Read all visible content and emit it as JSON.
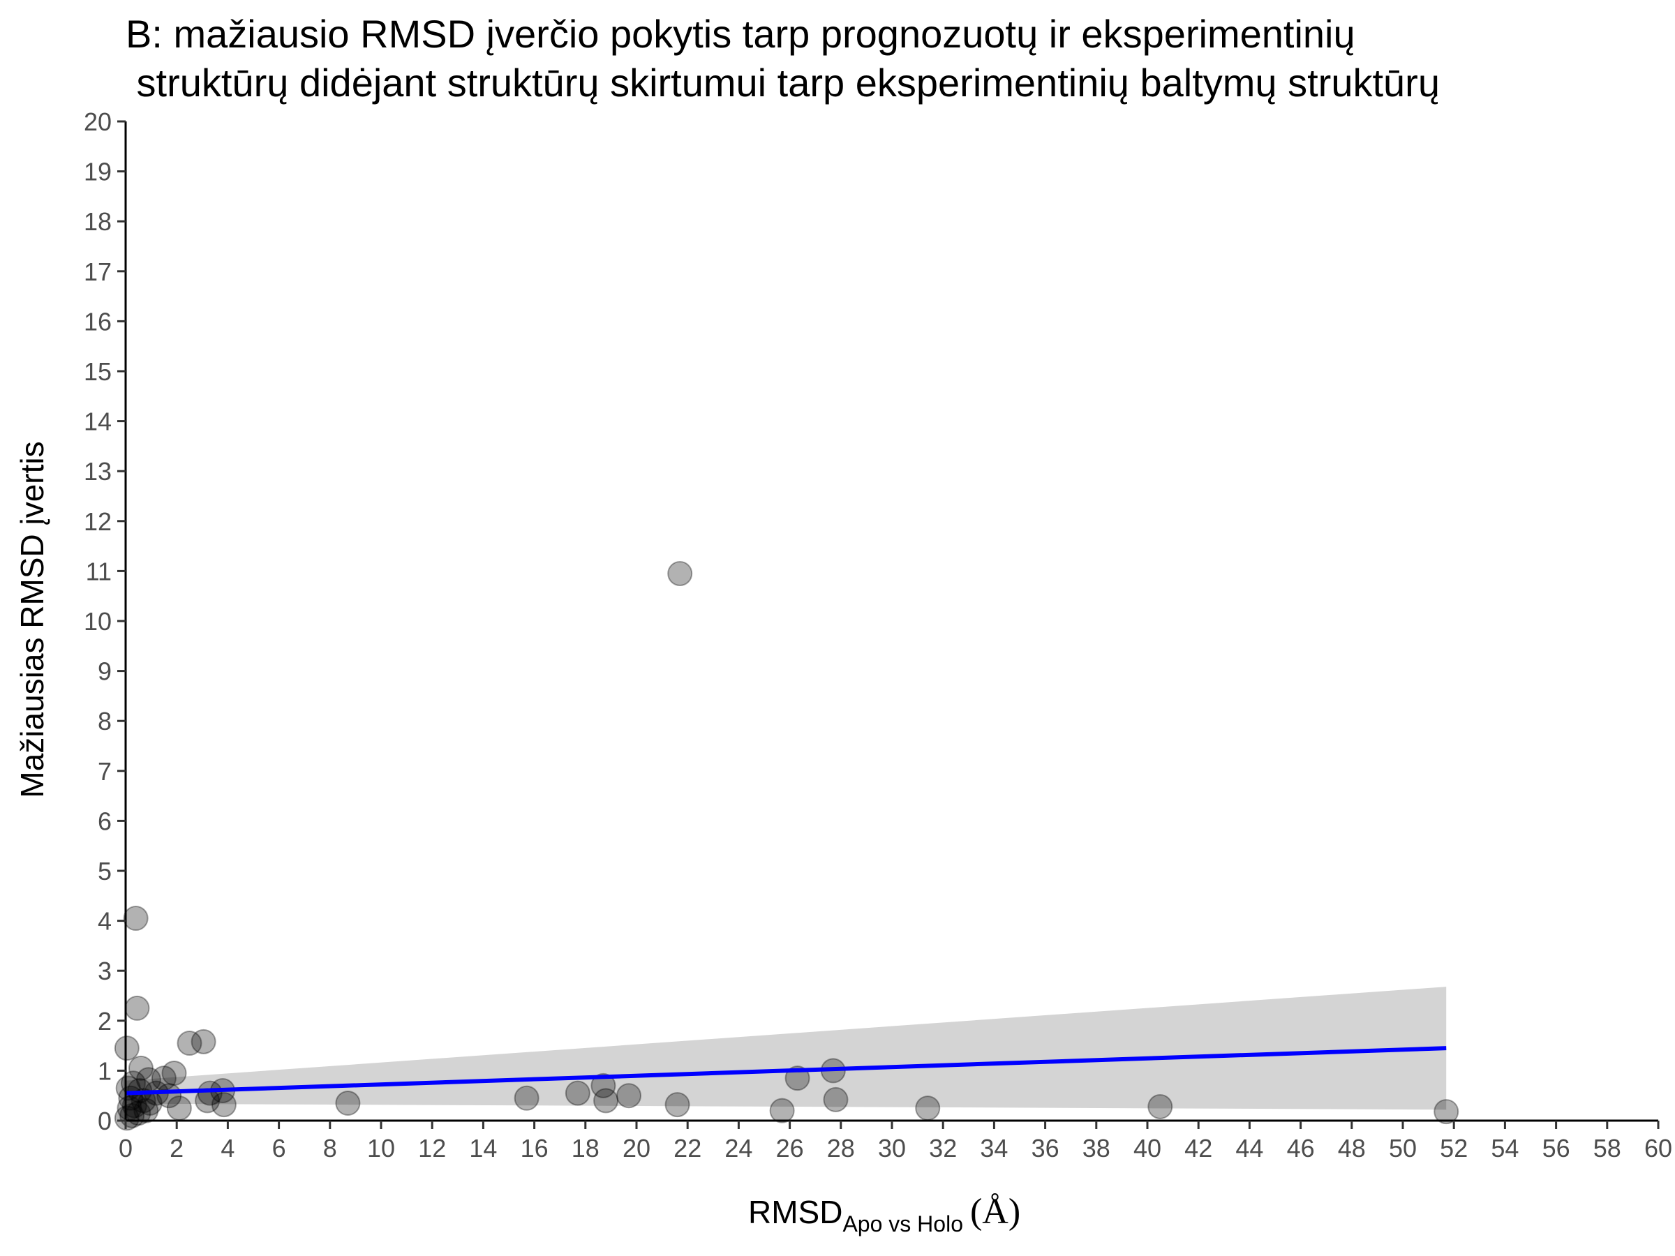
{
  "chart_data": {
    "type": "scatter",
    "title_lines": [
      "B: mažiausio RMSD įverčio pokytis tarp prognozuotų ir eksperimentinių",
      " struktūrų didėjant struktūrų skirtumui tarp eksperimentinių baltymų struktūrų"
    ],
    "xlabel": {
      "main": "RMSD",
      "subscript": "Apo vs Holo",
      "unit": "(Å)"
    },
    "ylabel": "Mažiausias RMSD įvertis",
    "xlim": [
      0,
      60
    ],
    "ylim": [
      0,
      20
    ],
    "x_ticks": [
      "0",
      "2",
      "4",
      "6",
      "8",
      "10",
      "12",
      "14",
      "16",
      "18",
      "20",
      "22",
      "24",
      "26",
      "28",
      "30",
      "32",
      "34",
      "36",
      "38",
      "40",
      "42",
      "44",
      "46",
      "48",
      "50",
      "52",
      "54",
      "56",
      "58",
      "60"
    ],
    "y_ticks": [
      "0",
      "1",
      "2",
      "3",
      "4",
      "5",
      "6",
      "7",
      "8",
      "9",
      "10",
      "11",
      "12",
      "13",
      "14",
      "15",
      "16",
      "17",
      "18",
      "19",
      "20"
    ],
    "grid": false,
    "legend": "none",
    "point_color": "#000000",
    "point_opacity": 0.3,
    "trend_color": "#0000ff",
    "band_color": "#d4d4d4",
    "points": [
      {
        "x": 0.4,
        "y": 4.05
      },
      {
        "x": 0.45,
        "y": 2.25
      },
      {
        "x": 0.05,
        "y": 1.45
      },
      {
        "x": 0.6,
        "y": 1.05
      },
      {
        "x": 2.5,
        "y": 1.55
      },
      {
        "x": 3.05,
        "y": 1.58
      },
      {
        "x": 1.9,
        "y": 0.95
      },
      {
        "x": 1.5,
        "y": 0.85
      },
      {
        "x": 0.9,
        "y": 0.82
      },
      {
        "x": 0.3,
        "y": 0.75
      },
      {
        "x": 0.1,
        "y": 0.65
      },
      {
        "x": 0.55,
        "y": 0.6
      },
      {
        "x": 1.2,
        "y": 0.55
      },
      {
        "x": 1.7,
        "y": 0.5
      },
      {
        "x": 0.2,
        "y": 0.45
      },
      {
        "x": 0.7,
        "y": 0.4
      },
      {
        "x": 0.95,
        "y": 0.35
      },
      {
        "x": 0.35,
        "y": 0.3
      },
      {
        "x": 0.15,
        "y": 0.25
      },
      {
        "x": 0.8,
        "y": 0.2
      },
      {
        "x": 0.5,
        "y": 0.15
      },
      {
        "x": 0.25,
        "y": 0.1
      },
      {
        "x": 0.05,
        "y": 0.05
      },
      {
        "x": 2.1,
        "y": 0.25
      },
      {
        "x": 3.3,
        "y": 0.55
      },
      {
        "x": 3.8,
        "y": 0.6
      },
      {
        "x": 3.2,
        "y": 0.4
      },
      {
        "x": 3.85,
        "y": 0.32
      },
      {
        "x": 8.7,
        "y": 0.35
      },
      {
        "x": 15.7,
        "y": 0.45
      },
      {
        "x": 17.7,
        "y": 0.55
      },
      {
        "x": 18.7,
        "y": 0.7
      },
      {
        "x": 18.8,
        "y": 0.4
      },
      {
        "x": 19.7,
        "y": 0.5
      },
      {
        "x": 21.7,
        "y": 10.95
      },
      {
        "x": 21.6,
        "y": 0.32
      },
      {
        "x": 25.7,
        "y": 0.2
      },
      {
        "x": 26.3,
        "y": 0.85
      },
      {
        "x": 27.7,
        "y": 1.0
      },
      {
        "x": 27.8,
        "y": 0.42
      },
      {
        "x": 31.4,
        "y": 0.25
      },
      {
        "x": 40.5,
        "y": 0.28
      },
      {
        "x": 51.7,
        "y": 0.18
      }
    ],
    "trend": {
      "x": [
        0,
        51.7
      ],
      "y": [
        0.55,
        1.45
      ]
    },
    "band": {
      "x": [
        0,
        51.7
      ],
      "upper": [
        0.8,
        2.68
      ],
      "lower": [
        0.34,
        0.22
      ]
    }
  }
}
